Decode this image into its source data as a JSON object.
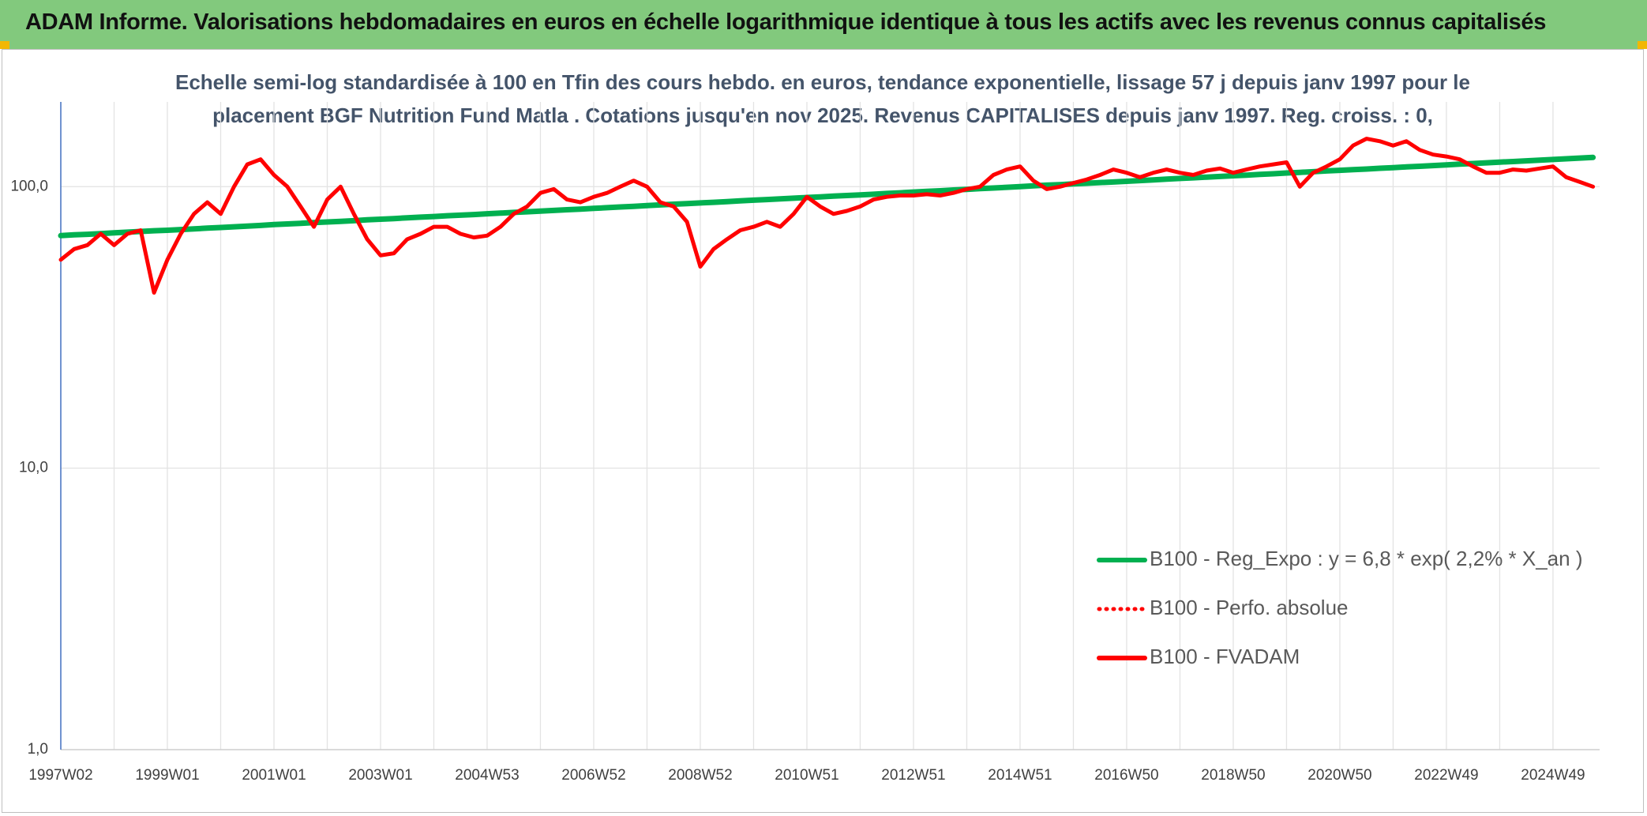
{
  "header": {
    "title": "ADAM Informe. Valorisations hebdomadaires en euros en échelle logarithmique identique à tous les actifs avec les revenus connus capitalisés"
  },
  "chart_data": {
    "type": "line",
    "title": [
      "Echelle semi-log standardisée à 100 en Tfin des cours hebdo. en euros, tendance exponentielle, lissage 57 j depuis janv 1997 pour le",
      "placement BGF Nutrition Fund Matla . Cotations jusqu'en nov 2025. Revenus CAPITALISES depuis janv 1997. Reg. croiss. : 0,"
    ],
    "log_scale": true,
    "grid": true,
    "legend": "bottom-right",
    "ylim": [
      1,
      200
    ],
    "yticks": [
      {
        "value": 1,
        "label": "1,0"
      },
      {
        "value": 10,
        "label": "10,0"
      },
      {
        "value": 100,
        "label": "100,0"
      }
    ],
    "categories": [
      "1997W02",
      null,
      null,
      null,
      null,
      null,
      null,
      null,
      "1999W01",
      null,
      null,
      null,
      null,
      null,
      null,
      null,
      "2001W01",
      null,
      null,
      null,
      null,
      null,
      null,
      null,
      "2003W01",
      null,
      null,
      null,
      null,
      null,
      null,
      null,
      "2004W53",
      null,
      null,
      null,
      null,
      null,
      null,
      null,
      "2006W52",
      null,
      null,
      null,
      null,
      null,
      null,
      null,
      "2008W52",
      null,
      null,
      null,
      null,
      null,
      null,
      null,
      "2010W51",
      null,
      null,
      null,
      null,
      null,
      null,
      null,
      "2012W51",
      null,
      null,
      null,
      null,
      null,
      null,
      null,
      "2014W51",
      null,
      null,
      null,
      null,
      null,
      null,
      null,
      "2016W50",
      null,
      null,
      null,
      null,
      null,
      null,
      null,
      "2018W50",
      null,
      null,
      null,
      null,
      null,
      null,
      null,
      "2020W50",
      null,
      null,
      null,
      null,
      null,
      null,
      null,
      "2022W49",
      null,
      null,
      null,
      null,
      null,
      null,
      null,
      "2024W49",
      null,
      null,
      null
    ],
    "series": [
      {
        "name": "B100 - Reg_Expo : y = 6,8 * exp( 2,2% *  X_an )",
        "color": "#00b050",
        "style": "solid",
        "values": [
          67.0,
          67.4,
          67.7,
          68.1,
          68.5,
          68.9,
          69.3,
          69.7,
          70.0,
          70.4,
          70.8,
          71.2,
          71.6,
          72.0,
          72.4,
          72.8,
          73.3,
          73.7,
          74.1,
          74.5,
          74.9,
          75.3,
          75.7,
          76.2,
          76.6,
          77.0,
          77.5,
          77.9,
          78.3,
          78.8,
          79.2,
          79.6,
          80.1,
          80.5,
          81.0,
          81.4,
          81.9,
          82.3,
          82.8,
          83.2,
          83.7,
          84.2,
          84.7,
          85.1,
          85.6,
          86.1,
          86.6,
          87.1,
          87.5,
          88.0,
          88.5,
          89.0,
          89.5,
          90.0,
          90.5,
          91.0,
          91.5,
          92.0,
          92.5,
          93.0,
          93.5,
          94.0,
          94.6,
          95.1,
          95.7,
          96.2,
          96.7,
          97.3,
          97.8,
          98.4,
          98.9,
          99.5,
          100.0,
          100.6,
          101.2,
          101.7,
          102.3,
          102.8,
          103.4,
          103.9,
          104.5,
          105.1,
          105.7,
          106.3,
          106.9,
          107.5,
          108.1,
          108.7,
          109.3,
          109.9,
          110.5,
          111.1,
          111.8,
          112.4,
          113.0,
          113.7,
          114.3,
          114.9,
          115.5,
          116.2,
          116.8,
          117.5,
          118.1,
          118.8,
          119.5,
          120.2,
          120.8,
          121.5,
          122.2,
          122.8,
          123.5,
          124.2,
          124.9,
          125.6,
          126.3,
          127.0
        ]
      },
      {
        "name": "B100 - Perfo. absolue",
        "color": "#ff0000",
        "style": "dotted",
        "values": [
          null,
          null,
          null,
          null,
          null,
          null,
          null,
          null,
          null,
          null,
          null,
          null,
          null,
          null,
          null,
          null,
          null,
          null,
          null,
          null,
          null,
          null,
          null,
          null,
          null,
          null,
          null,
          null,
          null,
          null,
          null,
          null,
          null,
          null,
          null,
          null,
          null,
          null,
          null,
          null,
          null,
          null,
          null,
          null,
          null,
          null,
          null,
          null,
          null,
          null,
          null,
          null,
          null,
          null,
          null,
          null,
          null,
          null,
          null,
          null,
          null,
          null,
          null,
          null,
          null,
          null,
          null,
          null,
          null,
          null,
          null,
          null,
          null,
          null,
          null,
          null,
          null,
          null,
          null,
          null,
          null,
          null,
          null,
          null,
          null,
          null,
          null,
          null,
          null,
          null,
          null,
          null,
          null,
          null,
          null,
          null,
          null,
          null,
          null,
          null,
          null,
          null,
          null,
          null,
          null,
          null,
          null,
          null,
          null,
          null,
          null,
          null,
          null,
          null,
          null,
          null
        ]
      },
      {
        "name": "B100 - FVADAM",
        "color": "#ff0000",
        "style": "solid",
        "values": [
          55,
          60,
          62,
          68,
          62,
          68,
          70,
          42,
          55,
          68,
          80,
          88,
          80,
          100,
          120,
          125,
          110,
          100,
          85,
          72,
          90,
          100,
          80,
          65,
          57,
          58,
          65,
          68,
          72,
          72,
          68,
          66,
          67,
          72,
          80,
          85,
          95,
          98,
          90,
          88,
          92,
          95,
          100,
          105,
          100,
          88,
          85,
          75,
          52,
          60,
          65,
          70,
          72,
          75,
          72,
          80,
          92,
          85,
          80,
          82,
          85,
          90,
          92,
          93,
          93,
          94,
          93,
          95,
          98,
          100,
          110,
          115,
          118,
          105,
          98,
          100,
          103,
          106,
          110,
          115,
          112,
          108,
          112,
          115,
          112,
          110,
          114,
          116,
          112,
          115,
          118,
          120,
          122,
          100,
          112,
          118,
          125,
          140,
          148,
          145,
          140,
          145,
          135,
          130,
          128,
          125,
          118,
          112,
          112,
          115,
          114,
          116,
          118,
          108,
          104,
          100
        ]
      }
    ]
  }
}
